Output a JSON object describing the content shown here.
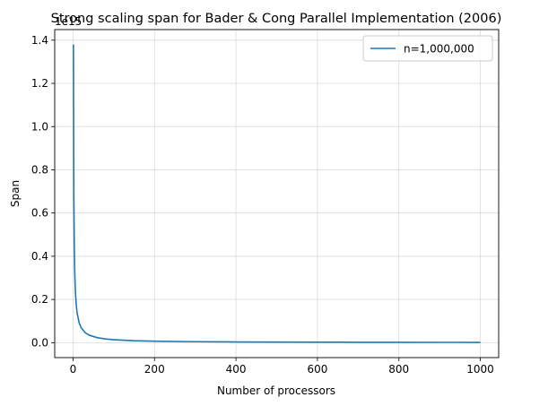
{
  "chart_data": {
    "type": "line",
    "title": "Strong scaling span for Bader & Cong Parallel Implementation  (2006)",
    "xlabel": "Number of processors",
    "ylabel": "Span",
    "y_offset_label": "1e15",
    "xlim": [
      -45,
      1045
    ],
    "ylim": [
      -0.069,
      1.449
    ],
    "x_ticks": [
      0,
      200,
      400,
      600,
      800,
      1000
    ],
    "x_tick_labels": [
      "0",
      "200",
      "400",
      "600",
      "800",
      "1000"
    ],
    "y_ticks": [
      0.0,
      0.2,
      0.4,
      0.6,
      0.8,
      1.0,
      1.2,
      1.4
    ],
    "y_tick_labels": [
      "0.0",
      "0.2",
      "0.4",
      "0.6",
      "0.8",
      "1.0",
      "1.2",
      "1.4"
    ],
    "grid": true,
    "legend": "top-right",
    "series": [
      {
        "name": "n=1,000,000",
        "color": "#1f77b4",
        "x": [
          1,
          2,
          3,
          4,
          5,
          6,
          8,
          10,
          15,
          20,
          30,
          40,
          60,
          80,
          100,
          150,
          200,
          300,
          400,
          500,
          600,
          700,
          800,
          900,
          1000
        ],
        "y": [
          1.38,
          0.69,
          0.46,
          0.345,
          0.276,
          0.23,
          0.1725,
          0.138,
          0.092,
          0.069,
          0.046,
          0.0345,
          0.023,
          0.01725,
          0.0138,
          0.0092,
          0.0069,
          0.0046,
          0.00345,
          0.00276,
          0.0023,
          0.00197,
          0.001725,
          0.00153,
          0.00138
        ]
      }
    ]
  }
}
